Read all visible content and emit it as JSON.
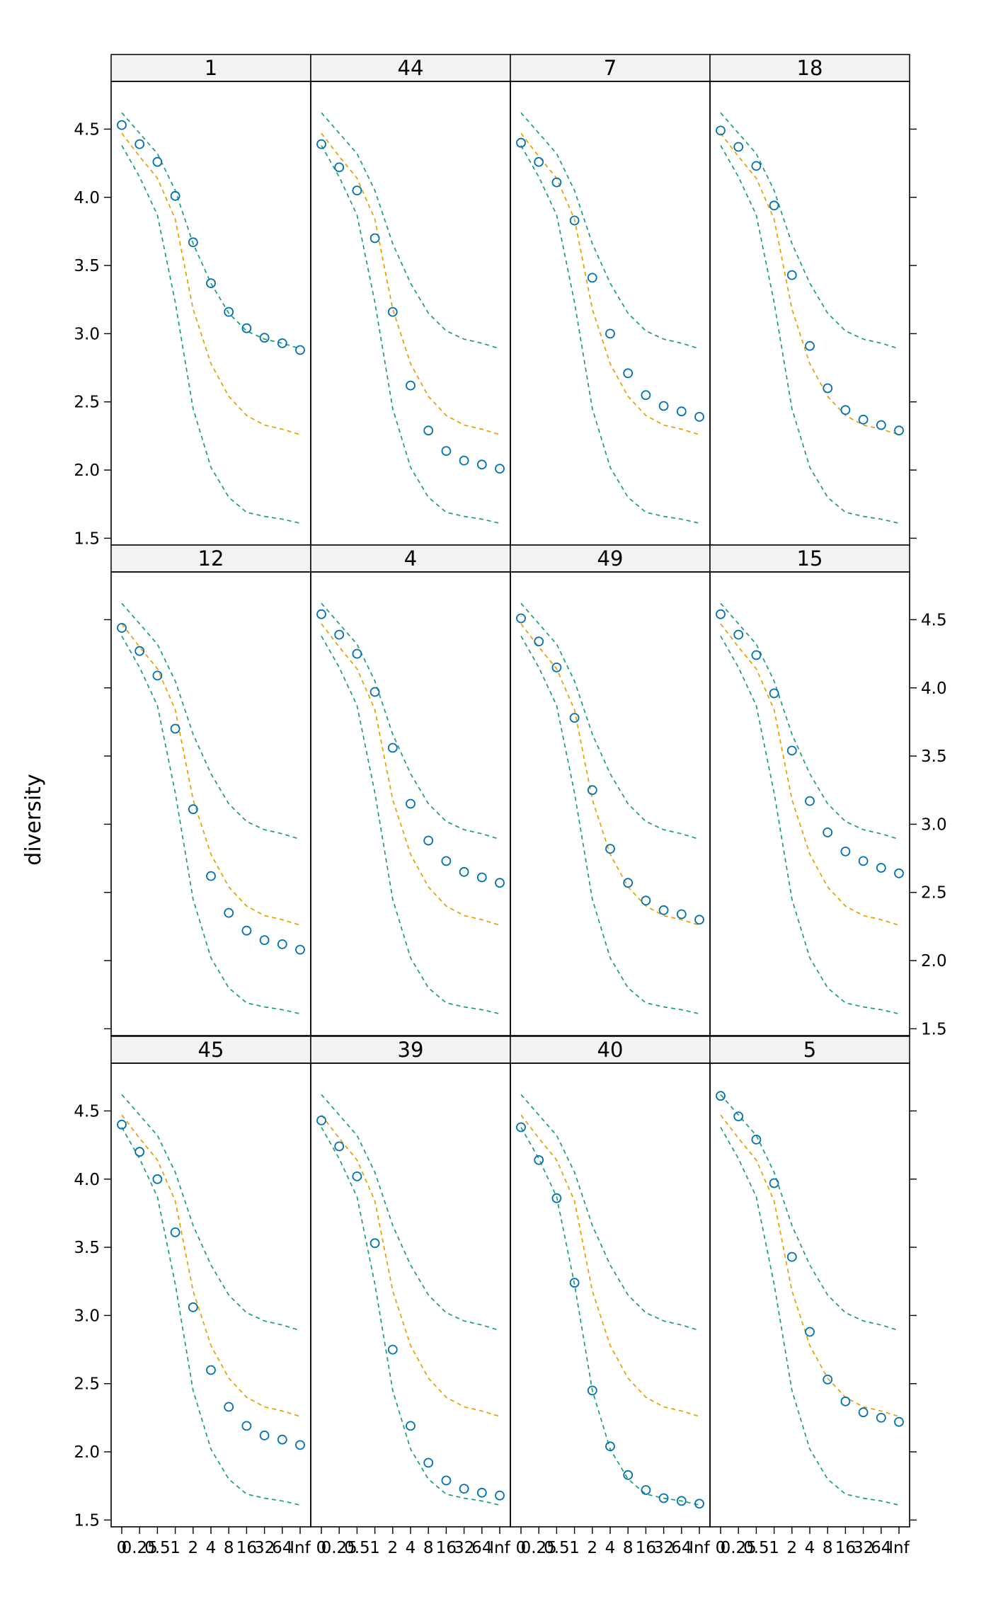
{
  "chart_data": {
    "type": "scatter",
    "ylabel": "diversity",
    "xlabel": "",
    "x_ticks": [
      "0",
      "0.25",
      "0.5",
      "1",
      "2",
      "4",
      "8",
      "16",
      "32",
      "64",
      "Inf"
    ],
    "y_ticks": [
      "1.5",
      "2.0",
      "2.5",
      "3.0",
      "3.5",
      "4.0",
      "4.5"
    ],
    "ylim": [
      1.45,
      4.85
    ],
    "layout": {
      "columns": 4,
      "rows": 3
    },
    "colors": {
      "band": "#1a9e77",
      "median": "#e69f00",
      "observed": "#0072b2"
    },
    "envelope": {
      "upper": [
        4.62,
        4.47,
        4.32,
        4.05,
        3.66,
        3.37,
        3.15,
        3.02,
        2.96,
        2.93,
        2.89
      ],
      "median": [
        4.47,
        4.3,
        4.14,
        3.84,
        3.18,
        2.78,
        2.54,
        2.4,
        2.33,
        2.3,
        2.26
      ],
      "lower": [
        4.38,
        4.15,
        3.87,
        3.23,
        2.45,
        2.02,
        1.8,
        1.69,
        1.66,
        1.64,
        1.61
      ]
    },
    "panels": [
      {
        "label": "1",
        "observed": [
          4.53,
          4.39,
          4.26,
          4.01,
          3.67,
          3.37,
          3.16,
          3.04,
          2.97,
          2.93,
          2.88
        ]
      },
      {
        "label": "44",
        "observed": [
          4.39,
          4.22,
          4.05,
          3.7,
          3.16,
          2.62,
          2.29,
          2.14,
          2.07,
          2.04,
          2.01
        ]
      },
      {
        "label": "7",
        "observed": [
          4.4,
          4.26,
          4.11,
          3.83,
          3.41,
          3.0,
          2.71,
          2.55,
          2.47,
          2.43,
          2.39
        ]
      },
      {
        "label": "18",
        "observed": [
          4.49,
          4.37,
          4.23,
          3.94,
          3.43,
          2.91,
          2.6,
          2.44,
          2.37,
          2.33,
          2.29
        ]
      },
      {
        "label": "12",
        "observed": [
          4.44,
          4.27,
          4.09,
          3.7,
          3.11,
          2.62,
          2.35,
          2.22,
          2.15,
          2.12,
          2.08
        ]
      },
      {
        "label": "4",
        "observed": [
          4.54,
          4.39,
          4.25,
          3.97,
          3.56,
          3.15,
          2.88,
          2.73,
          2.65,
          2.61,
          2.57
        ]
      },
      {
        "label": "49",
        "observed": [
          4.51,
          4.34,
          4.15,
          3.78,
          3.25,
          2.82,
          2.57,
          2.44,
          2.37,
          2.34,
          2.3
        ]
      },
      {
        "label": "15",
        "observed": [
          4.54,
          4.39,
          4.24,
          3.96,
          3.54,
          3.17,
          2.94,
          2.8,
          2.73,
          2.68,
          2.64
        ]
      },
      {
        "label": "45",
        "observed": [
          4.4,
          4.2,
          4.0,
          3.61,
          3.06,
          2.6,
          2.33,
          2.19,
          2.12,
          2.09,
          2.05
        ]
      },
      {
        "label": "39",
        "observed": [
          4.43,
          4.24,
          4.02,
          3.53,
          2.75,
          2.19,
          1.92,
          1.79,
          1.73,
          1.7,
          1.68
        ]
      },
      {
        "label": "40",
        "observed": [
          4.38,
          4.14,
          3.86,
          3.24,
          2.45,
          2.04,
          1.83,
          1.72,
          1.66,
          1.64,
          1.62
        ]
      },
      {
        "label": "5",
        "observed": [
          4.61,
          4.46,
          4.29,
          3.97,
          3.43,
          2.88,
          2.53,
          2.37,
          2.29,
          2.25,
          2.22
        ]
      }
    ]
  }
}
